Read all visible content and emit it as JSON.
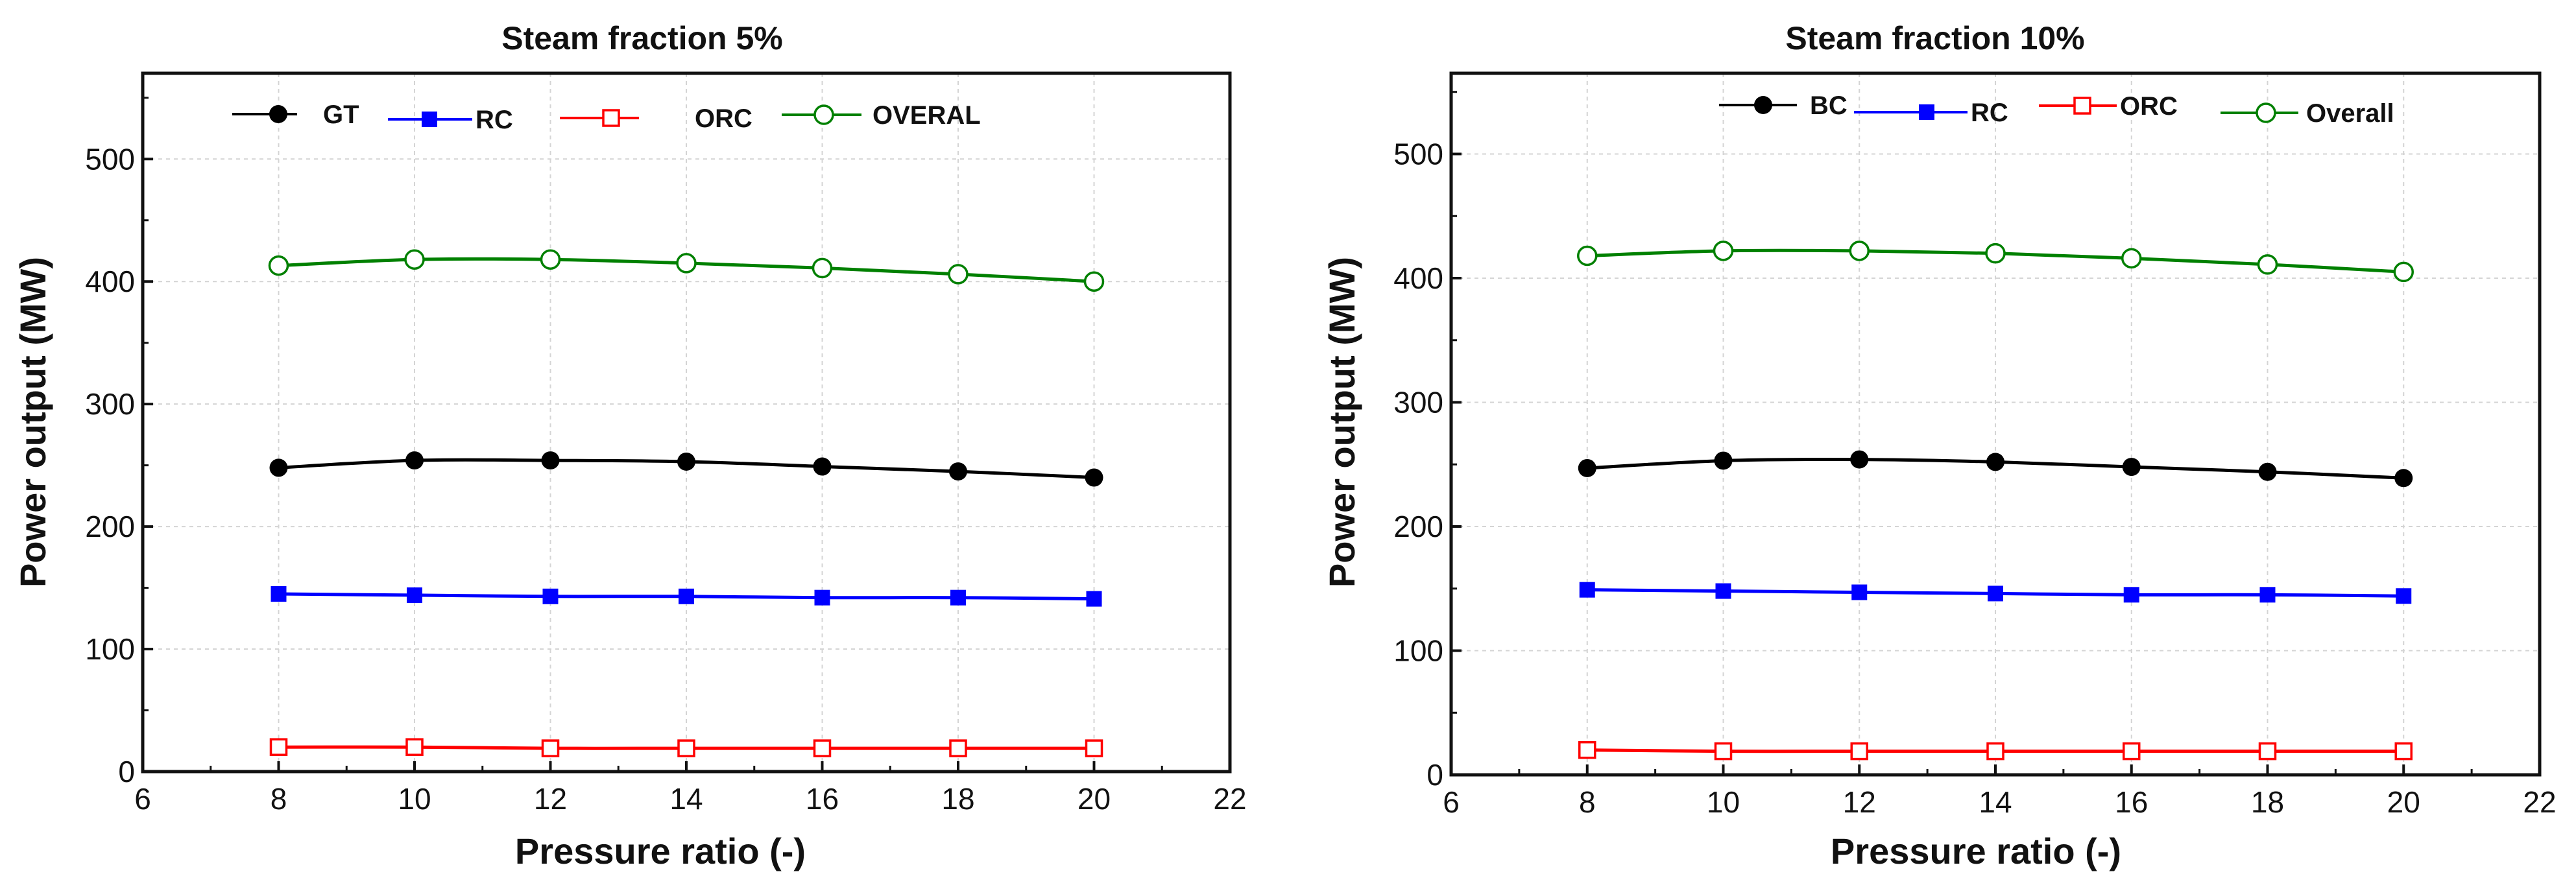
{
  "chart_data": [
    {
      "type": "line",
      "title": "Steam fraction 5%",
      "xlabel": "Pressure ratio (-)",
      "ylabel": "Power output (MW)",
      "xlim": [
        6,
        22
      ],
      "ylim": [
        0,
        570
      ],
      "xticks": [
        6,
        8,
        10,
        12,
        14,
        16,
        18,
        20,
        22
      ],
      "yticks": [
        0,
        100,
        200,
        300,
        400,
        500
      ],
      "grid": true,
      "legend_position": "top",
      "x": [
        8,
        10,
        12,
        14,
        16,
        18,
        20
      ],
      "series": [
        {
          "name": "GT",
          "color": "#000000",
          "marker": "filled-circle",
          "values": [
            248,
            254,
            254,
            253,
            249,
            245,
            240
          ]
        },
        {
          "name": "RC",
          "color": "#0000ff",
          "marker": "filled-square",
          "values": [
            145,
            144,
            143,
            143,
            142,
            142,
            141
          ]
        },
        {
          "name": "ORC",
          "color": "#ff0000",
          "marker": "open-square",
          "values": [
            20,
            20,
            19,
            19,
            19,
            19,
            19
          ]
        },
        {
          "name": "OVERAL",
          "color": "#008000",
          "marker": "open-circle",
          "values": [
            413,
            418,
            418,
            415,
            411,
            406,
            400
          ]
        }
      ]
    },
    {
      "type": "line",
      "title": "Steam fraction 10%",
      "xlabel": "Pressure ratio (-)",
      "ylabel": "Power output (MW)",
      "xlim": [
        6,
        22
      ],
      "ylim": [
        0,
        565
      ],
      "xticks": [
        6,
        8,
        10,
        12,
        14,
        16,
        18,
        20,
        22
      ],
      "yticks": [
        0,
        100,
        200,
        300,
        400,
        500
      ],
      "grid": true,
      "legend_position": "top",
      "x": [
        8,
        10,
        12,
        14,
        16,
        18,
        20
      ],
      "series": [
        {
          "name": "BC",
          "color": "#000000",
          "marker": "filled-circle",
          "values": [
            247,
            253,
            254,
            252,
            248,
            244,
            239
          ]
        },
        {
          "name": "RC",
          "color": "#0000ff",
          "marker": "filled-square",
          "values": [
            149,
            148,
            147,
            146,
            145,
            145,
            144
          ]
        },
        {
          "name": "ORC",
          "color": "#ff0000",
          "marker": "open-square",
          "values": [
            20,
            19,
            19,
            19,
            19,
            19,
            19
          ]
        },
        {
          "name": "Overall",
          "color": "#008000",
          "marker": "open-circle",
          "values": [
            418,
            422,
            422,
            420,
            416,
            411,
            405
          ]
        }
      ]
    }
  ]
}
